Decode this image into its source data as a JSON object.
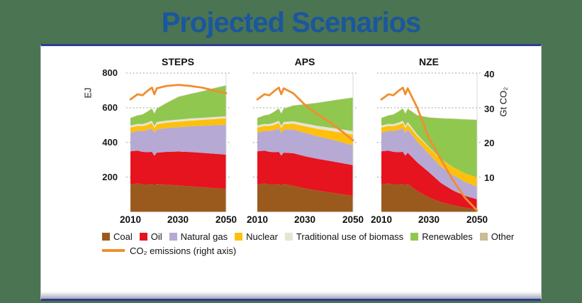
{
  "title": "Projected Scenarios",
  "colors": {
    "coal": "#9a5a1e",
    "oil": "#e5141f",
    "natural_gas": "#b6a9d4",
    "nuclear": "#fdc00d",
    "biomass": "#e8e4d2",
    "renewables": "#90c74f",
    "other": "#c7bd92",
    "co2_line": "#f28d30",
    "title_blue": "#1b569e",
    "background_green": "#4a7452",
    "panel_border_blue": "#2e3d96",
    "gridline_gray": "#8c8c8c",
    "plot_edge_gray": "#d9d9d9"
  },
  "axes": {
    "left": {
      "label": "EJ",
      "ticks": [
        "800",
        "600",
        "400",
        "200"
      ],
      "range": [
        0,
        800
      ]
    },
    "right": {
      "label": "Gt CO₂",
      "ticks": [
        "40",
        "30",
        "20",
        "10"
      ],
      "range": [
        0,
        40
      ]
    },
    "x": {
      "ticks": [
        "2010",
        "2030",
        "2050"
      ]
    }
  },
  "legend": {
    "items": [
      {
        "label": "Coal",
        "key": "coal"
      },
      {
        "label": "Oil",
        "key": "oil"
      },
      {
        "label": "Natural gas",
        "key": "natural_gas"
      },
      {
        "label": "Nuclear",
        "key": "nuclear"
      },
      {
        "label": "Traditional use of biomass",
        "key": "biomass"
      },
      {
        "label": "Renewables",
        "key": "renewables"
      },
      {
        "label": "Other",
        "key": "other"
      }
    ],
    "co2_label": "CO₂ emissions (right axis)"
  },
  "chart_data": [
    {
      "type": "area",
      "stacked": true,
      "title": "STEPS",
      "ylabel": "EJ",
      "y2label": "Gt CO₂",
      "ylim": [
        0,
        800
      ],
      "y2lim": [
        0,
        40
      ],
      "grid": "dotted horizontal at 200/400/600/800 EJ",
      "x": [
        2010,
        2013,
        2015,
        2017,
        2019,
        2020,
        2021,
        2025,
        2030,
        2035,
        2040,
        2045,
        2050
      ],
      "series": [
        {
          "name": "Coal",
          "key": "coal",
          "values": [
            158,
            163,
            158,
            157,
            160,
            152,
            161,
            156,
            152,
            147,
            142,
            137,
            132
          ]
        },
        {
          "name": "Oil",
          "key": "oil",
          "values": [
            191,
            190,
            188,
            187,
            186,
            172,
            180,
            190,
            196,
            198,
            198,
            198,
            198
          ]
        },
        {
          "name": "Natural gas",
          "key": "natural_gas",
          "values": [
            108,
            114,
            120,
            128,
            136,
            130,
            134,
            137,
            140,
            148,
            156,
            164,
            172
          ]
        },
        {
          "name": "Nuclear",
          "key": "nuclear",
          "values": [
            29,
            28,
            28,
            29,
            30,
            29,
            30,
            31,
            32,
            33,
            34,
            36,
            37
          ]
        },
        {
          "name": "Traditional use of biomass",
          "key": "biomass",
          "values": [
            12,
            12,
            12,
            13,
            13,
            13,
            13,
            12,
            12,
            12,
            12,
            12,
            12
          ]
        },
        {
          "name": "Renewables",
          "key": "renewables",
          "values": [
            42,
            48,
            54,
            62,
            70,
            70,
            76,
            100,
            130,
            141,
            152,
            165,
            177
          ]
        },
        {
          "name": "Other",
          "key": "other",
          "values": [
            2,
            2,
            2,
            2,
            2,
            2,
            2,
            2,
            2,
            2,
            2,
            2,
            2
          ]
        }
      ],
      "line_series": {
        "name": "CO₂ emissions",
        "axis": "right",
        "values": [
          32.4,
          33.9,
          33.6,
          34.8,
          35.8,
          33.9,
          35.6,
          36.3,
          36.6,
          36.3,
          35.8,
          35.0,
          34.2
        ]
      }
    },
    {
      "type": "area",
      "stacked": true,
      "title": "APS",
      "ylabel": "EJ",
      "y2label": "Gt CO₂",
      "ylim": [
        0,
        800
      ],
      "y2lim": [
        0,
        40
      ],
      "grid": "dotted horizontal at 200/400/600/800 EJ",
      "x": [
        2010,
        2013,
        2015,
        2017,
        2019,
        2020,
        2021,
        2025,
        2030,
        2035,
        2040,
        2045,
        2050
      ],
      "series": [
        {
          "name": "Coal",
          "key": "coal",
          "values": [
            158,
            163,
            158,
            157,
            160,
            152,
            161,
            150,
            135,
            123,
            112,
            102,
            92
          ]
        },
        {
          "name": "Oil",
          "key": "oil",
          "values": [
            191,
            190,
            188,
            187,
            186,
            172,
            180,
            188,
            185,
            183,
            182,
            180,
            177
          ]
        },
        {
          "name": "Natural gas",
          "key": "natural_gas",
          "values": [
            108,
            114,
            120,
            128,
            136,
            130,
            134,
            137,
            135,
            130,
            126,
            120,
            114
          ]
        },
        {
          "name": "Nuclear",
          "key": "nuclear",
          "values": [
            29,
            28,
            28,
            29,
            30,
            29,
            30,
            33,
            38,
            43,
            48,
            55,
            62
          ]
        },
        {
          "name": "Traditional use of biomass",
          "key": "biomass",
          "values": [
            12,
            12,
            12,
            13,
            13,
            13,
            13,
            14,
            16,
            17,
            18,
            19,
            20
          ]
        },
        {
          "name": "Renewables",
          "key": "renewables",
          "values": [
            42,
            48,
            54,
            62,
            70,
            70,
            76,
            90,
            110,
            131,
            152,
            172,
            193
          ]
        },
        {
          "name": "Other",
          "key": "other",
          "values": [
            2,
            2,
            2,
            2,
            2,
            2,
            2,
            2,
            2,
            2,
            2,
            2,
            2
          ]
        }
      ],
      "line_series": {
        "name": "CO₂ emissions",
        "axis": "right",
        "values": [
          32.4,
          33.9,
          33.6,
          34.8,
          35.8,
          33.9,
          35.6,
          34.2,
          30.8,
          28.2,
          26.0,
          23.4,
          20.6
        ]
      }
    },
    {
      "type": "area",
      "stacked": true,
      "title": "NZE",
      "ylabel": "EJ",
      "y2label": "Gt CO₂",
      "ylim": [
        0,
        800
      ],
      "y2lim": [
        0,
        40
      ],
      "grid": "dotted horizontal at 200/400/600/800 EJ",
      "x": [
        2010,
        2013,
        2015,
        2017,
        2019,
        2020,
        2021,
        2025,
        2030,
        2035,
        2040,
        2045,
        2050
      ],
      "series": [
        {
          "name": "Coal",
          "key": "coal",
          "values": [
            158,
            163,
            158,
            157,
            160,
            152,
            161,
            120,
            82,
            55,
            38,
            24,
            14
          ]
        },
        {
          "name": "Oil",
          "key": "oil",
          "values": [
            191,
            190,
            188,
            187,
            186,
            172,
            180,
            165,
            145,
            110,
            85,
            68,
            58
          ]
        },
        {
          "name": "Natural gas",
          "key": "natural_gas",
          "values": [
            108,
            114,
            120,
            128,
            136,
            130,
            134,
            120,
            105,
            95,
            88,
            80,
            74
          ]
        },
        {
          "name": "Nuclear",
          "key": "nuclear",
          "values": [
            29,
            28,
            28,
            29,
            30,
            29,
            30,
            32,
            37,
            42,
            46,
            50,
            53
          ]
        },
        {
          "name": "Traditional use of biomass",
          "key": "biomass",
          "values": [
            12,
            12,
            12,
            13,
            13,
            13,
            13,
            9,
            4,
            1,
            0.5,
            0.2,
            0
          ]
        },
        {
          "name": "Renewables",
          "key": "renewables",
          "values": [
            42,
            48,
            54,
            62,
            70,
            70,
            76,
            110,
            170,
            235,
            278,
            310,
            330
          ]
        },
        {
          "name": "Other",
          "key": "other",
          "values": [
            2,
            2,
            2,
            2,
            2,
            2,
            2,
            2,
            2,
            2,
            2,
            2,
            2
          ]
        }
      ],
      "line_series": {
        "name": "CO₂ emissions",
        "axis": "right",
        "values": [
          32.4,
          33.9,
          33.6,
          34.8,
          35.8,
          33.9,
          35.6,
          30.0,
          21.0,
          15.0,
          9.0,
          4.0,
          0.4
        ]
      }
    }
  ]
}
